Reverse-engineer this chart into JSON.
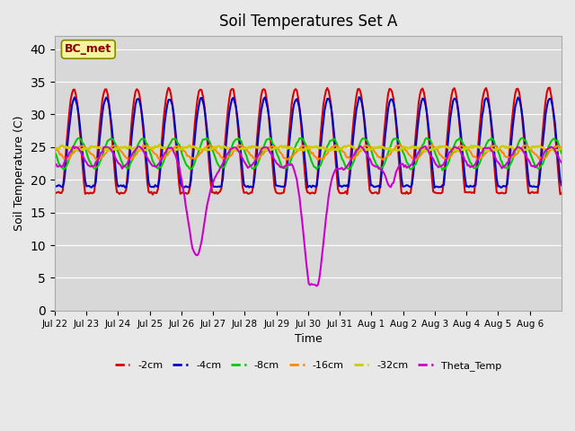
{
  "title": "Soil Temperatures Set A",
  "xlabel": "Time",
  "ylabel": "Soil Temperature (C)",
  "ylim": [
    0,
    42
  ],
  "yticks": [
    0,
    5,
    10,
    15,
    20,
    25,
    30,
    35,
    40
  ],
  "background_color": "#e8e8e8",
  "plot_bg_color": "#d8d8d8",
  "annotation_text": "BC_met",
  "annotation_color": "#8b0000",
  "annotation_bg": "#f5f5a0",
  "series": {
    "-2cm": {
      "color": "#dd0000",
      "lw": 1.5
    },
    "-4cm": {
      "color": "#0000cc",
      "lw": 1.5
    },
    "-8cm": {
      "color": "#00cc00",
      "lw": 1.5
    },
    "-16cm": {
      "color": "#ff8800",
      "lw": 1.5
    },
    "-32cm": {
      "color": "#cccc00",
      "lw": 2.0
    },
    "Theta_Temp": {
      "color": "#cc00cc",
      "lw": 1.5
    }
  },
  "x_tick_labels": [
    "Jul 22",
    "Jul 23",
    "Jul 24",
    "Jul 25",
    "Jul 26",
    "Jul 27",
    "Jul 28",
    "Jul 29",
    "Jul 30",
    "Jul 31",
    "Aug 1",
    "Aug 2",
    "Aug 3",
    "Aug 4",
    "Aug 5",
    "Aug 6"
  ],
  "n_days": 16
}
